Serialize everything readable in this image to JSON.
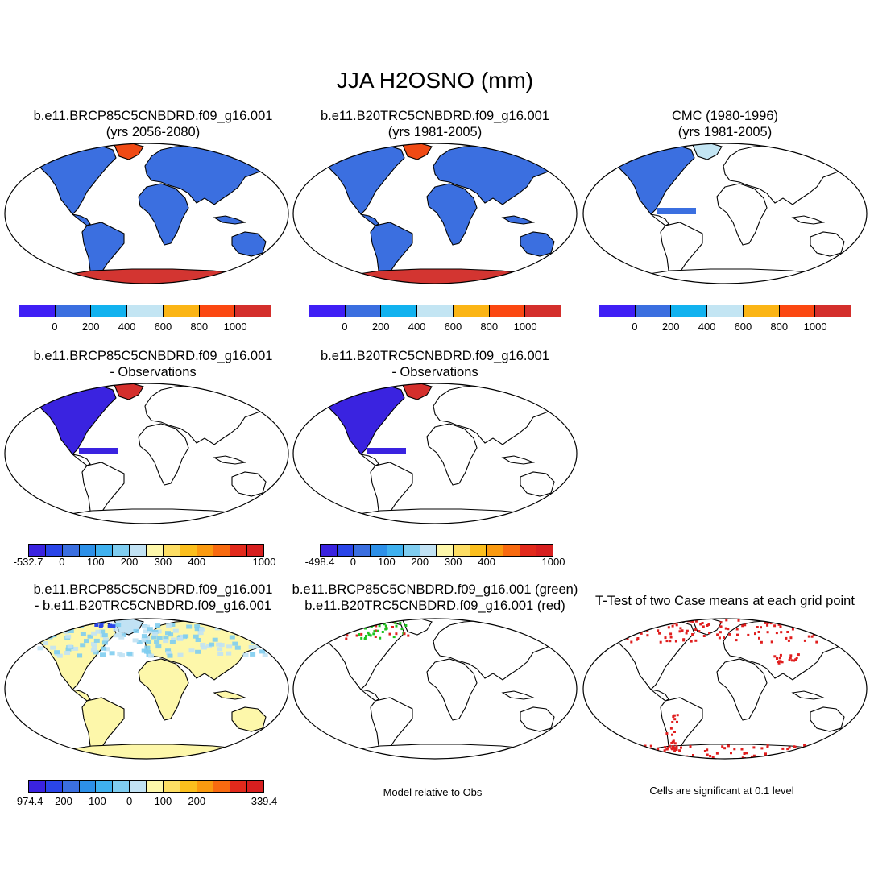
{
  "figure": {
    "title": "JJA H2OSNO (mm)"
  },
  "palettes": {
    "seq": [
      "#3f1ff5",
      "#3b6fe0",
      "#12b2ef",
      "#c3e5f3",
      "#fbb515",
      "#fb4811",
      "#d42f2c"
    ],
    "diff": [
      "#3a23e0",
      "#2a45e8",
      "#3b6fe0",
      "#2d90e8",
      "#3fb1ef",
      "#7fcdf0",
      "#c1e2f4",
      "#fdf7aa",
      "#fdde64",
      "#fbbf1d",
      "#fa9a10",
      "#f86a10",
      "#e22a1c",
      "#d71f1f"
    ]
  },
  "panels": [
    {
      "id": "p1",
      "title1": "b.e11.BRCP85C5CNBDRD.f09_g16.001",
      "title2": "(yrs 2056-2080)",
      "fill": "#3b6fe0",
      "greenland": "#f04a14",
      "antarctica": "#d33531",
      "mode": "full",
      "colorbar": "seq",
      "ticks": [
        "0",
        "200",
        "400",
        "600",
        "800",
        "1000"
      ]
    },
    {
      "id": "p2",
      "title1": "b.e11.B20TRC5CNBDRD.f09_g16.001",
      "title2": "(yrs 1981-2005)",
      "fill": "#3b6fe0",
      "greenland": "#f04a14",
      "antarctica": "#d33531",
      "mode": "full",
      "colorbar": "seq",
      "ticks": [
        "0",
        "200",
        "400",
        "600",
        "800",
        "1000"
      ]
    },
    {
      "id": "p3",
      "title1": "CMC (1980-1996)",
      "title2": "(yrs 1981-2005)",
      "fill": "#3b6fe0",
      "greenland": "#c3e5f3",
      "antarctica": "",
      "mode": "northamerica",
      "colorbar": "seq",
      "ticks": [
        "0",
        "200",
        "400",
        "600",
        "800",
        "1000"
      ]
    },
    {
      "id": "p4",
      "title1": "b.e11.BRCP85C5CNBDRD.f09_g16.001",
      "title2": "- Observations",
      "fill": "#3a23e0",
      "greenland": "#d42f2c",
      "antarctica": "",
      "mode": "northamerica",
      "colorbar": "diff",
      "ticks": [
        "-532.7",
        "0",
        "100",
        "200",
        "300",
        "400",
        "1000"
      ]
    },
    {
      "id": "p5",
      "title1": "b.e11.B20TRC5CNBDRD.f09_g16.001",
      "title2": "- Observations",
      "fill": "#3a23e0",
      "greenland": "#d42f2c",
      "antarctica": "",
      "mode": "northamerica",
      "colorbar": "diff",
      "ticks": [
        "-498.4",
        "0",
        "100",
        "200",
        "300",
        "400",
        "1000"
      ]
    },
    {
      "id": "p6",
      "title1": "b.e11.BRCP85C5CNBDRD.f09_g16.001",
      "title2": "- b.e11.B20TRC5CNBDRD.f09_g16.001",
      "fill": "#fdf7aa",
      "greenland": "#c1e2f4",
      "antarctica": "#fdf7aa",
      "mode": "diffcase",
      "colorbar": "diff",
      "ticks": [
        "-974.4",
        "-200",
        "-100",
        "0",
        "100",
        "200",
        "339.4"
      ]
    },
    {
      "id": "p7",
      "title1": "b.e11.BRCP85C5CNBDRD.f09_g16.001 (green)",
      "title2": "b.e11.B20TRC5CNBDRD.f09_g16.001 (red)",
      "fill": "#ffffff",
      "greenland": "#ffffff",
      "antarctica": "",
      "mode": "dots_gr",
      "colorbar": "",
      "ticks": [],
      "note": "Model relative to Obs"
    },
    {
      "id": "p8",
      "title1": "T-Test of two Case means at each grid point",
      "title2": "",
      "fill": "#ffffff",
      "greenland": "#ffffff",
      "antarctica": "",
      "mode": "dots_red",
      "colorbar": "",
      "ticks": [],
      "note": "Cells are significant at 0.1 level"
    }
  ]
}
